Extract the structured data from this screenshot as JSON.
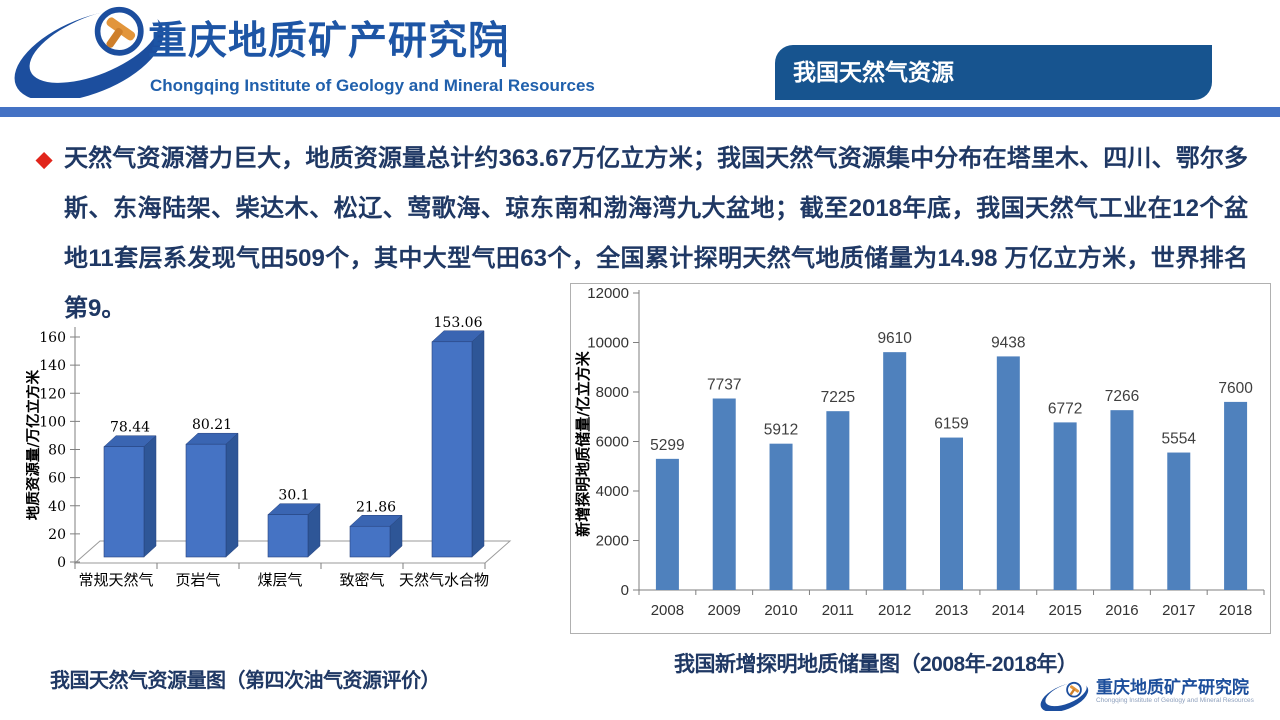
{
  "header": {
    "org_name_zh": "重庆地质矿产研究院",
    "org_name_en": "Chongqing Institute of Geology and Mineral Resources",
    "slide_title": "我国天然气资源"
  },
  "intro": {
    "bullet": "◆",
    "text": "天然气资源潜力巨大，地质资源量总计约363.67万亿立方米；我国天然气资源集中分布在塔里木、四川、鄂尔多斯、东海陆架、柴达木、松辽、莺歌海、琼东南和渤海湾九大盆地；截至2018年底，我国天然气工业在12个盆地11套层系发现气田509个，其中大型气田63个，全国累计探明天然气地质储量为14.98 万亿立方米，世界排名第9。"
  },
  "chart_data": [
    {
      "type": "bar",
      "style": "3d",
      "title": "我国天然气资源量图（第四次油气资源评价）",
      "categories": [
        "常规天然气",
        "页岩气",
        "煤层气",
        "致密气",
        "天然气水合物"
      ],
      "values": [
        78.44,
        80.21,
        30.1,
        21.86,
        153.06
      ],
      "value_labels": [
        "78.44",
        "80.21",
        "30.1",
        "21.86",
        "153.06"
      ],
      "xlabel": "",
      "ylabel": "地质资源量/万亿立方米",
      "ylim": [
        0,
        160
      ],
      "yticks": [
        0,
        20,
        40,
        60,
        80,
        100,
        120,
        140,
        160
      ],
      "grid": false,
      "legend": "none",
      "bar_colors": {
        "front": "#4573C4",
        "top": "#3A65B2",
        "side": "#2E5697",
        "outline": "#27437E"
      }
    },
    {
      "type": "bar",
      "title": "我国新增探明地质储量图（2008年-2018年）",
      "categories": [
        "2008",
        "2009",
        "2010",
        "2011",
        "2012",
        "2013",
        "2014",
        "2015",
        "2016",
        "2017",
        "2018"
      ],
      "values": [
        5299,
        7737,
        5912,
        7225,
        9610,
        6159,
        9438,
        6772,
        7266,
        5554,
        7600
      ],
      "value_labels": [
        "5299",
        "7737",
        "5912",
        "7225",
        "9610",
        "6159",
        "9438",
        "6772",
        "7266",
        "5554",
        "7600"
      ],
      "xlabel": "",
      "ylabel": "新增探明地质储量/亿立方米",
      "ylim": [
        0,
        12000
      ],
      "yticks": [
        0,
        2000,
        4000,
        6000,
        8000,
        10000,
        12000
      ],
      "grid": false,
      "legend": "none",
      "bar_colors": {
        "front": "#4F81BD"
      }
    }
  ],
  "footer": {
    "org_name_zh": "重庆地质矿产研究院",
    "org_name_en": "Chongqing Institute of Geology and Mineral Resources"
  },
  "colors": {
    "accent_stripe": "#4472C4",
    "title_box_blue": "#17548F",
    "heading_blue": "#1D55A5",
    "text_navy": "#1F3864",
    "bullet_red": "#E1251B",
    "axis_gray": "#7F7F7F"
  }
}
